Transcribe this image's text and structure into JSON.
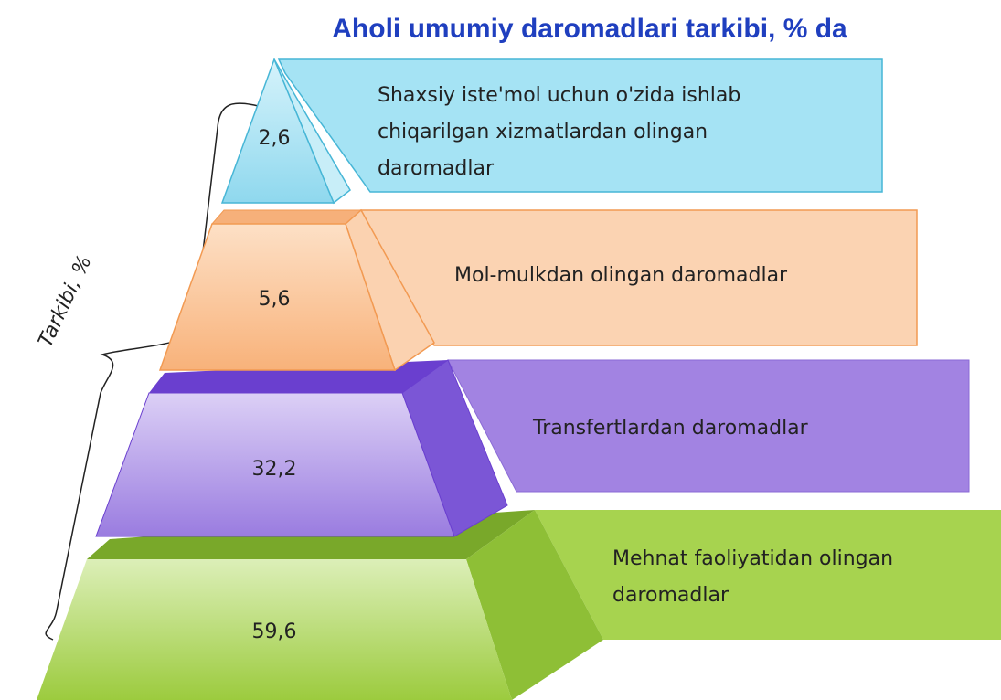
{
  "title": "Aholi umumiy daromadlari tarkibi, % da",
  "axis_label": "Tarkibi, %",
  "layers": [
    {
      "value": "2,6",
      "label": [
        "Shaxsiy iste'mol uchun o'zida ishlab",
        "chiqarilgan xizmatlardan olingan",
        "daromadlar"
      ]
    },
    {
      "value": "5,6",
      "label": [
        "Mol-mulkdan olingan daromadlar"
      ]
    },
    {
      "value": "32,2",
      "label": [
        "Transfertlardan daromadlar"
      ]
    },
    {
      "value": "59,6",
      "label": [
        "Mehnat faoliyatidan olingan",
        "daromadlar"
      ]
    }
  ]
}
